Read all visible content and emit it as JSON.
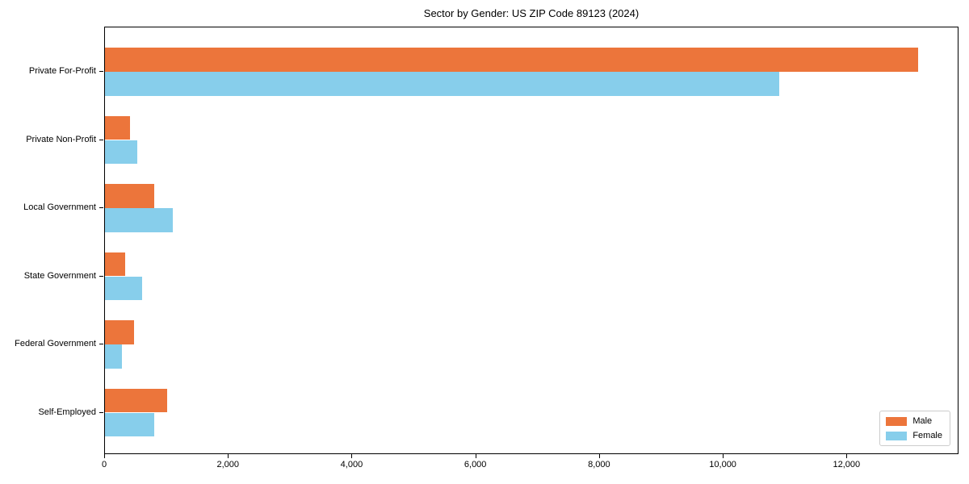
{
  "chart_data": {
    "type": "bar",
    "orientation": "horizontal",
    "title": "Sector by Gender: US ZIP Code 89123 (2024)",
    "categories": [
      "Private For-Profit",
      "Private Non-Profit",
      "Local Government",
      "State Government",
      "Federal Government",
      "Self-Employed"
    ],
    "series": [
      {
        "name": "Male",
        "color": "#ec753b",
        "values": [
          13150,
          400,
          800,
          330,
          470,
          1000
        ]
      },
      {
        "name": "Female",
        "color": "#87ceeb",
        "values": [
          10900,
          520,
          1100,
          600,
          270,
          800
        ]
      }
    ],
    "xlabel": "",
    "ylabel": "",
    "xlim": [
      0,
      13810
    ],
    "x_ticks": [
      0,
      2000,
      4000,
      6000,
      8000,
      10000,
      12000
    ],
    "x_tick_labels": [
      "0",
      "2,000",
      "4,000",
      "6,000",
      "8,000",
      "10,000",
      "12,000"
    ],
    "grid": false,
    "legend_position": "lower right",
    "legend_labels": [
      "Male",
      "Female"
    ]
  }
}
